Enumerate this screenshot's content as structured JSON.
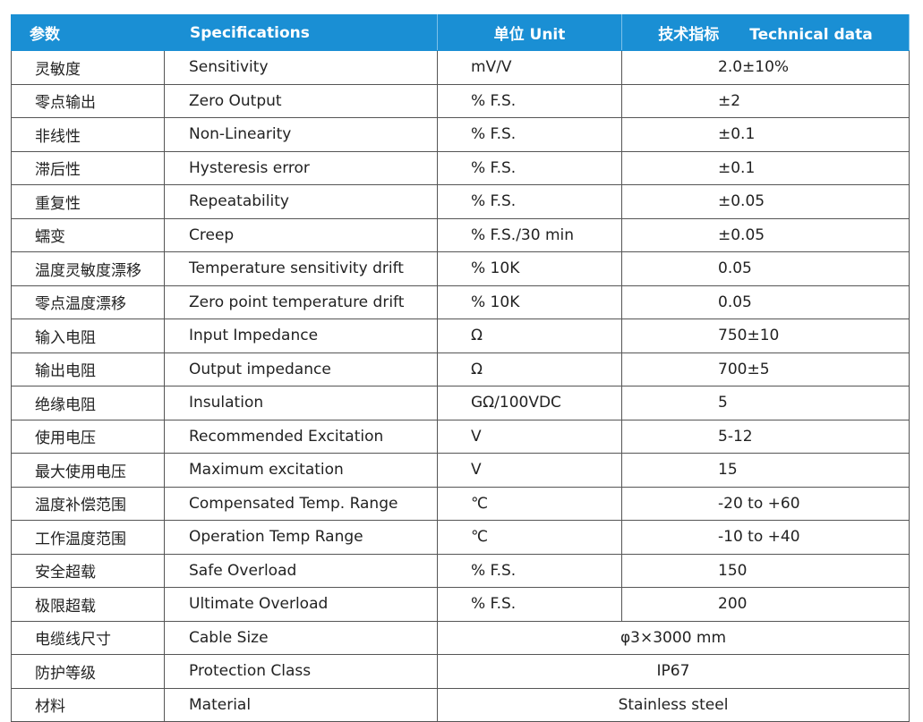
{
  "header": [
    "参数",
    "Specifications",
    "单位 Unit",
    "技术指标",
    "Technical data"
  ],
  "rows": [
    [
      "灵敏度",
      "Sensitivity",
      "mV/V",
      "2.0±10%"
    ],
    [
      "零点输出",
      "Zero Output",
      "% F.S.",
      "±2"
    ],
    [
      "非线性",
      "Non-Linearity",
      "% F.S.",
      "±0.1"
    ],
    [
      "滞后性",
      "Hysteresis error",
      "% F.S.",
      "±0.1"
    ],
    [
      "重复性",
      "Repeatability",
      "% F.S.",
      "±0.05"
    ],
    [
      "蠕变",
      "Creep",
      "% F.S./30 min",
      "±0.05"
    ],
    [
      "温度灵敏度漂移",
      "Temperature sensitivity drift",
      "% 10K",
      "0.05"
    ],
    [
      "零点温度漂移",
      "Zero point temperature drift",
      "% 10K",
      "0.05"
    ],
    [
      "输入电阻",
      "Input Impedance",
      "Ω",
      "750±10"
    ],
    [
      "输出电阻",
      "Output impedance",
      "Ω",
      "700±5"
    ],
    [
      "绝缘电阻",
      "Insulation",
      "GΩ/100VDC",
      "5"
    ],
    [
      "使用电压",
      "Recommended Excitation",
      "V",
      "5-12"
    ],
    [
      "最大使用电压",
      "Maximum excitation",
      "V",
      "15"
    ],
    [
      "温度补偿范围",
      "Compensated Temp. Range",
      "℃",
      "-20 to +60"
    ],
    [
      "工作温度范围",
      "Operation Temp Range",
      "℃",
      "-10 to +40"
    ],
    [
      "安全超载",
      "Safe Overload",
      "% F.S.",
      "150"
    ],
    [
      "极限超载",
      "Ultimate Overload",
      "% F.S.",
      "200"
    ],
    [
      "电缆线尺寸",
      "Cable Size",
      "φ3×3000 mm"
    ],
    [
      "防护等级",
      "Protection Class",
      "IP67"
    ],
    [
      "材料",
      "Material",
      "Stainless steel"
    ]
  ]
}
